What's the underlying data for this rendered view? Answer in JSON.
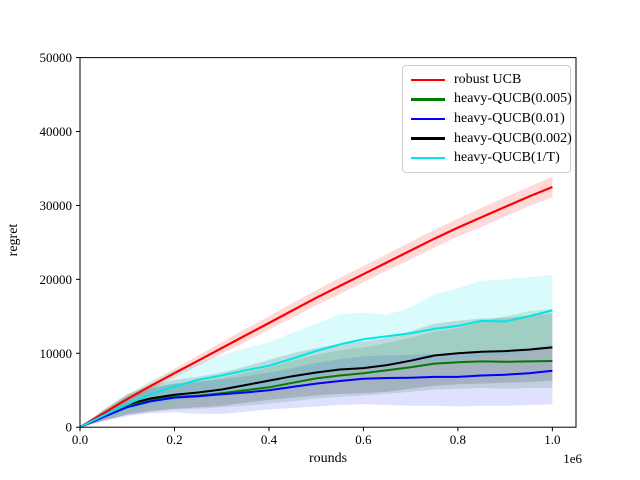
{
  "figure": {
    "background": "#ffffff"
  },
  "axes": {
    "xlabel": "rounds",
    "ylabel": "regret",
    "offset_text": "1e6",
    "x_tick_labels": [
      "0.0",
      "0.2",
      "0.4",
      "0.6",
      "0.8",
      "1.0"
    ],
    "y_tick_labels": [
      "0",
      "10000",
      "20000",
      "30000",
      "40000",
      "50000"
    ]
  },
  "legend": {
    "position": "upper right",
    "entries": [
      {
        "label": "robust UCB",
        "color": "#ff0000"
      },
      {
        "label": "heavy-QUCB(0.005)",
        "color": "#007d00"
      },
      {
        "label": "heavy-QUCB(0.01)",
        "color": "#0000ff"
      },
      {
        "label": "heavy-QUCB(0.002)",
        "color": "#000000"
      },
      {
        "label": "heavy-QUCB(1/T)",
        "color": "#00e5e5"
      }
    ]
  },
  "chart_data": {
    "type": "line",
    "title": "",
    "xlabel": "rounds",
    "ylabel": "regret",
    "x_unit_multiplier": "1e6",
    "xlim": [
      0,
      1050000
    ],
    "ylim": [
      0,
      50000
    ],
    "x_ticks": [
      0,
      200000,
      400000,
      600000,
      800000,
      1000000
    ],
    "y_ticks": [
      0,
      10000,
      20000,
      30000,
      40000,
      50000
    ],
    "grid": false,
    "legend_position": "upper right",
    "x": [
      0,
      0.05,
      0.1,
      0.15,
      0.2,
      0.25,
      0.3,
      0.35,
      0.4,
      0.45,
      0.5,
      0.55,
      0.6,
      0.65,
      0.7,
      0.75,
      0.8,
      0.85,
      0.9,
      0.95,
      1.0
    ],
    "x_scale": 1000000,
    "series": [
      {
        "name": "robust UCB",
        "color": "#ff0000",
        "line_width": 2.2,
        "band_opacity": 0.15,
        "values": [
          0,
          1900,
          3800,
          5600,
          7300,
          9000,
          10700,
          12400,
          14100,
          15800,
          17500,
          19100,
          20700,
          22300,
          23900,
          25500,
          27000,
          28400,
          29800,
          31200,
          32500
        ],
        "band_top": [
          0,
          2100,
          4200,
          6100,
          7900,
          9700,
          11500,
          13300,
          15000,
          16800,
          18500,
          20200,
          21800,
          23400,
          25100,
          26700,
          28200,
          29700,
          31100,
          32500,
          33900
        ],
        "band_bottom": [
          0,
          1700,
          3400,
          5100,
          6700,
          8300,
          9900,
          11500,
          13200,
          14800,
          16500,
          18000,
          19600,
          21200,
          22700,
          24300,
          25800,
          27100,
          28500,
          29900,
          31100
        ]
      },
      {
        "name": "heavy-QUCB(0.005)",
        "color": "#007d00",
        "line_width": 2,
        "band_opacity": 0.14,
        "values": [
          0,
          1500,
          2900,
          3700,
          4100,
          4250,
          4600,
          5000,
          5400,
          6000,
          6600,
          7000,
          7300,
          7700,
          8100,
          8600,
          8800,
          8900,
          8850,
          8900,
          8950
        ],
        "band_top": [
          0,
          2300,
          4300,
          5400,
          5900,
          6100,
          6700,
          7400,
          8100,
          9000,
          9800,
          10400,
          10800,
          11400,
          12100,
          12900,
          13400,
          14300,
          15000,
          15700,
          16000
        ],
        "band_bottom": [
          0,
          900,
          1700,
          2100,
          2400,
          2500,
          2700,
          2900,
          3200,
          3500,
          3900,
          4100,
          4300,
          4500,
          4800,
          5100,
          5200,
          5300,
          5200,
          5300,
          5300
        ]
      },
      {
        "name": "heavy-QUCB(0.01)",
        "color": "#0000ff",
        "line_width": 2,
        "band_opacity": 0.12,
        "values": [
          0,
          1400,
          2700,
          3500,
          4000,
          4200,
          4450,
          4700,
          5000,
          5450,
          5900,
          6250,
          6550,
          6650,
          6700,
          6800,
          6800,
          7000,
          7100,
          7300,
          7650
        ],
        "band_top": [
          0,
          2100,
          4000,
          5200,
          5900,
          6200,
          6500,
          6900,
          7400,
          8000,
          8700,
          9200,
          9600,
          9700,
          9800,
          9900,
          9900,
          10200,
          10400,
          10700,
          11100
        ],
        "band_bottom": [
          0,
          800,
          1500,
          1900,
          2000,
          1800,
          1800,
          2100,
          2400,
          2600,
          2800,
          3000,
          3100,
          3000,
          2900,
          2900,
          2800,
          2900,
          2900,
          3000,
          3100
        ]
      },
      {
        "name": "heavy-QUCB(0.002)",
        "color": "#000000",
        "line_width": 2,
        "band_opacity": 0.14,
        "values": [
          0,
          1600,
          3100,
          3900,
          4400,
          4700,
          5100,
          5700,
          6300,
          6900,
          7400,
          7800,
          8000,
          8400,
          9000,
          9700,
          10000,
          10200,
          10300,
          10500,
          10800
        ],
        "band_top": [
          0,
          2400,
          4500,
          5700,
          6400,
          6800,
          7400,
          8200,
          9100,
          10000,
          10700,
          11300,
          11600,
          12100,
          13000,
          14000,
          14400,
          14700,
          14800,
          15100,
          15400
        ],
        "band_bottom": [
          0,
          900,
          1700,
          2200,
          2500,
          2700,
          2900,
          3300,
          3700,
          4000,
          4300,
          4500,
          4600,
          4800,
          5200,
          5600,
          5800,
          5900,
          6000,
          6100,
          6300
        ]
      },
      {
        "name": "heavy-QUCB(1/T)",
        "color": "#00e5e5",
        "line_width": 2,
        "band_opacity": 0.15,
        "values": [
          0,
          1600,
          3100,
          4500,
          5500,
          6400,
          7000,
          7700,
          8300,
          9300,
          10300,
          11200,
          11900,
          12300,
          12700,
          13300,
          13700,
          14400,
          14300,
          15000,
          15800
        ],
        "band_top": [
          0,
          2300,
          4400,
          6300,
          7700,
          8900,
          9700,
          10700,
          11500,
          12800,
          14000,
          15300,
          15500,
          15200,
          16200,
          18000,
          18800,
          19800,
          20000,
          20300,
          20600
        ],
        "band_bottom": [
          0,
          1000,
          2000,
          2900,
          3600,
          4200,
          4600,
          5100,
          5500,
          6200,
          6900,
          7500,
          8000,
          8300,
          8600,
          9000,
          9300,
          9600,
          9700,
          10200,
          10700
        ]
      }
    ]
  }
}
